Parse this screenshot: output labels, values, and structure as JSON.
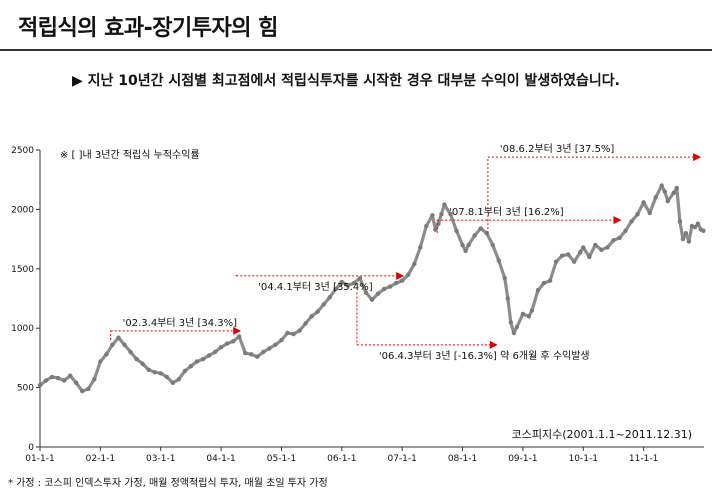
{
  "header": {
    "title": "적립식의 효과-장기투자의 힘",
    "subtitle": "▶ 지난 10년간 시점별 최고점에서 적립식투자를 시작한 경우 대부분 수익이 발생하였습니다."
  },
  "footnote": "* 가정 : 코스피 인덱스투자 가정, 매월 정액적립식 투자, 매월 초일 투자 가정",
  "chart_data": {
    "type": "line",
    "title": "",
    "legend_note": "※ [ ]내 3년간 적립식 누적수익률",
    "series_label": "코스피지수(2001.1.1~2011.12.31)",
    "xlabel": "",
    "ylabel": "",
    "x_range": [
      2001.0,
      2012.0
    ],
    "ylim": [
      0,
      2500
    ],
    "y_ticks": [
      0,
      500,
      1000,
      1500,
      2000,
      2500
    ],
    "x_ticks": [
      {
        "label": "01-1-1",
        "x": 2001.0
      },
      {
        "label": "02-1-1",
        "x": 2002.0
      },
      {
        "label": "03-1-1",
        "x": 2003.0
      },
      {
        "label": "04-1-1",
        "x": 2004.0
      },
      {
        "label": "05-1-1",
        "x": 2005.0
      },
      {
        "label": "06-1-1",
        "x": 2006.0
      },
      {
        "label": "07-1-1",
        "x": 2007.0
      },
      {
        "label": "08-1-1",
        "x": 2008.0
      },
      {
        "label": "09-1-1",
        "x": 2009.0
      },
      {
        "label": "10-1-1",
        "x": 2010.0
      },
      {
        "label": "11-1-1",
        "x": 2011.0
      }
    ],
    "series": [
      {
        "name": "코스피지수",
        "color": "#8c8c8c",
        "points": [
          [
            2001.0,
            520
          ],
          [
            2001.1,
            560
          ],
          [
            2001.2,
            590
          ],
          [
            2001.3,
            580
          ],
          [
            2001.4,
            560
          ],
          [
            2001.5,
            600
          ],
          [
            2001.6,
            540
          ],
          [
            2001.7,
            470
          ],
          [
            2001.8,
            490
          ],
          [
            2001.9,
            570
          ],
          [
            2002.0,
            720
          ],
          [
            2002.1,
            780
          ],
          [
            2002.2,
            860
          ],
          [
            2002.3,
            920
          ],
          [
            2002.4,
            860
          ],
          [
            2002.5,
            800
          ],
          [
            2002.6,
            740
          ],
          [
            2002.7,
            700
          ],
          [
            2002.8,
            650
          ],
          [
            2002.9,
            630
          ],
          [
            2003.0,
            620
          ],
          [
            2003.1,
            590
          ],
          [
            2003.2,
            540
          ],
          [
            2003.3,
            570
          ],
          [
            2003.4,
            640
          ],
          [
            2003.5,
            680
          ],
          [
            2003.6,
            720
          ],
          [
            2003.7,
            740
          ],
          [
            2003.8,
            770
          ],
          [
            2003.9,
            800
          ],
          [
            2004.0,
            840
          ],
          [
            2004.1,
            870
          ],
          [
            2004.2,
            890
          ],
          [
            2004.3,
            930
          ],
          [
            2004.4,
            790
          ],
          [
            2004.5,
            780
          ],
          [
            2004.6,
            760
          ],
          [
            2004.7,
            800
          ],
          [
            2004.8,
            830
          ],
          [
            2004.9,
            860
          ],
          [
            2005.0,
            900
          ],
          [
            2005.1,
            960
          ],
          [
            2005.2,
            950
          ],
          [
            2005.3,
            980
          ],
          [
            2005.4,
            1040
          ],
          [
            2005.5,
            1100
          ],
          [
            2005.6,
            1140
          ],
          [
            2005.7,
            1200
          ],
          [
            2005.8,
            1260
          ],
          [
            2005.9,
            1330
          ],
          [
            2006.0,
            1390
          ],
          [
            2006.1,
            1360
          ],
          [
            2006.2,
            1380
          ],
          [
            2006.3,
            1420
          ],
          [
            2006.4,
            1300
          ],
          [
            2006.5,
            1240
          ],
          [
            2006.6,
            1290
          ],
          [
            2006.7,
            1330
          ],
          [
            2006.8,
            1350
          ],
          [
            2006.9,
            1380
          ],
          [
            2007.0,
            1400
          ],
          [
            2007.1,
            1450
          ],
          [
            2007.2,
            1540
          ],
          [
            2007.3,
            1680
          ],
          [
            2007.4,
            1860
          ],
          [
            2007.5,
            1950
          ],
          [
            2007.55,
            1830
          ],
          [
            2007.6,
            1880
          ],
          [
            2007.65,
            1960
          ],
          [
            2007.7,
            2040
          ],
          [
            2007.8,
            1960
          ],
          [
            2007.9,
            1820
          ],
          [
            2008.0,
            1700
          ],
          [
            2008.05,
            1650
          ],
          [
            2008.1,
            1700
          ],
          [
            2008.2,
            1780
          ],
          [
            2008.3,
            1840
          ],
          [
            2008.4,
            1800
          ],
          [
            2008.5,
            1700
          ],
          [
            2008.6,
            1570
          ],
          [
            2008.7,
            1420
          ],
          [
            2008.75,
            1250
          ],
          [
            2008.8,
            1050
          ],
          [
            2008.85,
            960
          ],
          [
            2008.9,
            1010
          ],
          [
            2009.0,
            1120
          ],
          [
            2009.1,
            1100
          ],
          [
            2009.15,
            1150
          ],
          [
            2009.25,
            1320
          ],
          [
            2009.35,
            1380
          ],
          [
            2009.45,
            1400
          ],
          [
            2009.55,
            1560
          ],
          [
            2009.65,
            1610
          ],
          [
            2009.75,
            1620
          ],
          [
            2009.85,
            1560
          ],
          [
            2009.95,
            1640
          ],
          [
            2010.0,
            1680
          ],
          [
            2010.1,
            1600
          ],
          [
            2010.2,
            1700
          ],
          [
            2010.3,
            1660
          ],
          [
            2010.4,
            1680
          ],
          [
            2010.5,
            1740
          ],
          [
            2010.6,
            1760
          ],
          [
            2010.7,
            1820
          ],
          [
            2010.8,
            1900
          ],
          [
            2010.9,
            1960
          ],
          [
            2011.0,
            2060
          ],
          [
            2011.1,
            1970
          ],
          [
            2011.2,
            2100
          ],
          [
            2011.3,
            2200
          ],
          [
            2011.35,
            2150
          ],
          [
            2011.4,
            2070
          ],
          [
            2011.5,
            2140
          ],
          [
            2011.55,
            2180
          ],
          [
            2011.6,
            1900
          ],
          [
            2011.65,
            1750
          ],
          [
            2011.7,
            1800
          ],
          [
            2011.75,
            1730
          ],
          [
            2011.8,
            1860
          ],
          [
            2011.85,
            1850
          ],
          [
            2011.9,
            1880
          ],
          [
            2011.95,
            1830
          ],
          [
            2011.99,
            1820
          ]
        ]
      }
    ],
    "annotations": [
      {
        "label": "'02.3.4부터 3년 [34.3%]",
        "start": [
          2002.17,
          900
        ],
        "end": [
          2004.3,
          977
        ]
      },
      {
        "label": "'04.4.1부터 3년 [35.4%]",
        "start": [
          2004.25,
          1450
        ],
        "end": [
          2007.0,
          1440
        ]
      },
      {
        "label": "'07.8.1부터 3년 [16.2%]",
        "start": [
          2007.58,
          1800
        ],
        "end": [
          2010.6,
          1910
        ]
      },
      {
        "label": "'08.6.2부터 3년 [37.5%]",
        "start": [
          2008.42,
          1800
        ],
        "end": [
          2011.92,
          2440
        ]
      },
      {
        "label": "'06.4.3부터 3년 [-16.3%] 약 6개월 후 수익발생",
        "start": [
          2006.25,
          1300
        ],
        "end": [
          2008.55,
          860
        ]
      }
    ],
    "annotation_color": "#e00000",
    "grid": false
  }
}
